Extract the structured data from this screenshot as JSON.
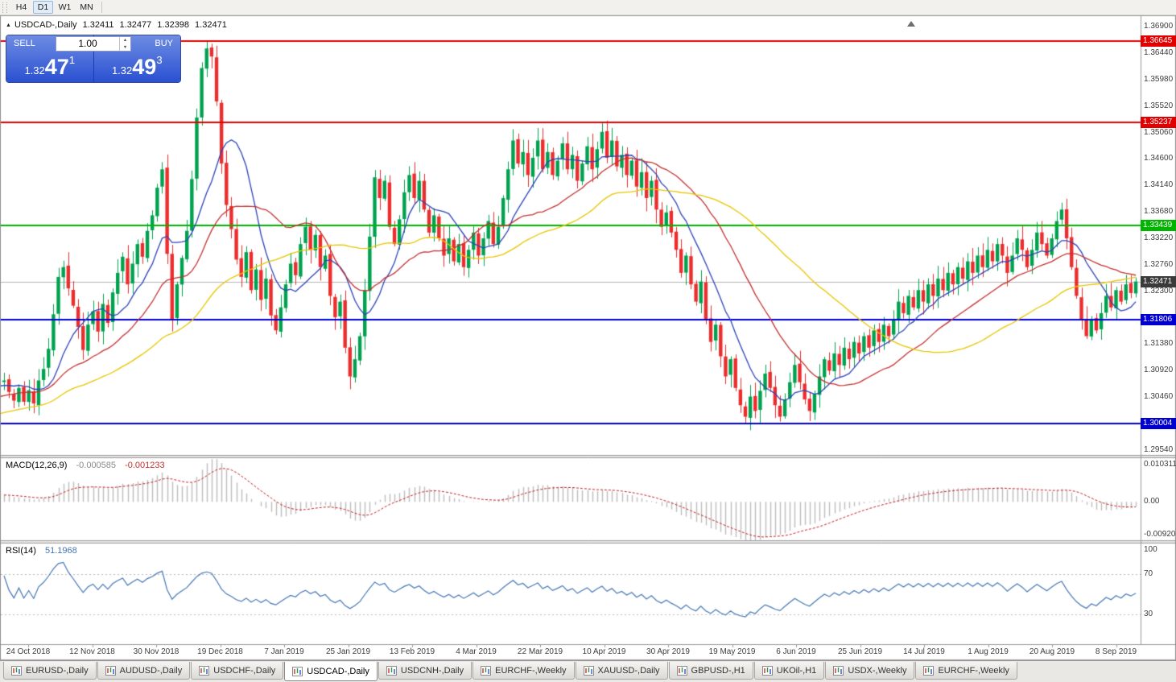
{
  "toolbar": {
    "timeframe_buttons": [
      "H4",
      "D1",
      "W1",
      "MN"
    ],
    "active_timeframe": "D1"
  },
  "chart_header": {
    "symbol_label": "USDCAD-,Daily",
    "open": "1.32411",
    "high": "1.32477",
    "low": "1.32398",
    "close": "1.32471"
  },
  "one_click_trading": {
    "sell_label": "SELL",
    "buy_label": "BUY",
    "volume": "1.00",
    "sell_price": {
      "base": "1.32",
      "pips": "47",
      "frac": "1"
    },
    "buy_price": {
      "base": "1.32",
      "pips": "49",
      "frac": "3"
    }
  },
  "indicators": {
    "macd": {
      "label": "MACD(12,26,9)",
      "value_main": "-0.000585",
      "value_signal": "-0.001233",
      "fast": 12,
      "slow": 26,
      "signal": 9,
      "axis_max": "0.010311",
      "axis_zero": "0.00",
      "axis_min": "-0.009203"
    },
    "rsi": {
      "label": "RSI(14)",
      "value": "51.1968",
      "period": 14,
      "axis_labels": [
        "100",
        "70",
        "30"
      ],
      "levels": [
        70,
        30
      ]
    }
  },
  "chart_data": {
    "type": "candlestick",
    "title": "USDCAD-,Daily",
    "symbol": "USDCAD",
    "timeframe": "Daily",
    "up_color": "#00a24f",
    "down_color": "#ec2d2d",
    "x_labels": [
      "24 Oct 2018",
      "12 Nov 2018",
      "30 Nov 2018",
      "19 Dec 2018",
      "7 Jan 2019",
      "25 Jan 2019",
      "13 Feb 2019",
      "4 Mar 2019",
      "22 Mar 2019",
      "10 Apr 2019",
      "30 Apr 2019",
      "19 May 2019",
      "6 Jun 2019",
      "25 Jun 2019",
      "14 Jul 2019",
      "1 Aug 2019",
      "20 Aug 2019",
      "8 Sep 2019"
    ],
    "closes": [
      1.3075,
      1.3055,
      1.304,
      1.3062,
      1.3038,
      1.3058,
      1.3035,
      1.3075,
      1.3095,
      1.313,
      1.319,
      1.3255,
      1.3272,
      1.3235,
      1.3205,
      1.3168,
      1.3128,
      1.3172,
      1.3195,
      1.316,
      1.3208,
      1.3175,
      1.3228,
      1.3262,
      1.329,
      1.3242,
      1.3278,
      1.3312,
      1.329,
      1.3335,
      1.3362,
      1.341,
      1.3442,
      1.3295,
      1.3182,
      1.3242,
      1.3288,
      1.3335,
      1.3425,
      1.3532,
      1.3618,
      1.3652,
      1.3638,
      1.356,
      1.3452,
      1.338,
      1.3338,
      1.3285,
      1.3255,
      1.3298,
      1.3232,
      1.3268,
      1.3215,
      1.3252,
      1.3188,
      1.3162,
      1.3202,
      1.3242,
      1.3278,
      1.3258,
      1.3312,
      1.3342,
      1.3302,
      1.3328,
      1.3272,
      1.3292,
      1.3222,
      1.3185,
      1.3212,
      1.3132,
      1.3082,
      1.3112,
      1.3152,
      1.3232,
      1.3325,
      1.3428,
      1.3392,
      1.3422,
      1.3342,
      1.3312,
      1.3355,
      1.3402,
      1.3432,
      1.3392,
      1.3422,
      1.3372,
      1.3332,
      1.3362,
      1.3322,
      1.3292,
      1.3322,
      1.3282,
      1.3312,
      1.3272,
      1.3302,
      1.3332,
      1.3292,
      1.3322,
      1.3352,
      1.3312,
      1.3342,
      1.3392,
      1.3442,
      1.3492,
      1.3452,
      1.3472,
      1.3432,
      1.3462,
      1.3492,
      1.3442,
      1.3472,
      1.3432,
      1.3457,
      1.3487,
      1.3442,
      1.3467,
      1.3422,
      1.3452,
      1.3482,
      1.3442,
      1.3477,
      1.3507,
      1.3462,
      1.3492,
      1.3447,
      1.3467,
      1.3432,
      1.3457,
      1.3412,
      1.3437,
      1.3392,
      1.3422,
      1.3372,
      1.3342,
      1.3367,
      1.3332,
      1.3302,
      1.3262,
      1.3292,
      1.3242,
      1.3212,
      1.3247,
      1.3182,
      1.3142,
      1.3172,
      1.3117,
      1.3082,
      1.3112,
      1.3062,
      1.3032,
      1.3012,
      1.3047,
      1.3022,
      1.3057,
      1.3087,
      1.3062,
      1.3032,
      1.3012,
      1.3042,
      1.3072,
      1.3102,
      1.3072,
      1.3042,
      1.3022,
      1.3052,
      1.3082,
      1.3112,
      1.3092,
      1.3122,
      1.3102,
      1.3132,
      1.3112,
      1.3142,
      1.3122,
      1.3152,
      1.3132,
      1.3162,
      1.3142,
      1.3172,
      1.3152,
      1.3182,
      1.3212,
      1.3192,
      1.3222,
      1.3202,
      1.3232,
      1.3212,
      1.3242,
      1.3222,
      1.3252,
      1.3232,
      1.3262,
      1.3242,
      1.3272,
      1.3252,
      1.3282,
      1.3262,
      1.3292,
      1.3272,
      1.3302,
      1.3282,
      1.3312,
      1.3292,
      1.3262,
      1.3292,
      1.3322,
      1.3302,
      1.3272,
      1.3302,
      1.3332,
      1.3312,
      1.3292,
      1.3322,
      1.3352,
      1.3372,
      1.3322,
      1.3272,
      1.3222,
      1.3182,
      1.3152,
      1.3182,
      1.3162,
      1.3192,
      1.3222,
      1.3202,
      1.3232,
      1.3212,
      1.3242,
      1.3227,
      1.3247
    ],
    "seed_history": {
      "bars": 60,
      "start": 1.2935
    },
    "pinned_extremes": {
      "41": {
        "high": 1.36645
      },
      "121": {
        "high": 1.35237
      },
      "150": {
        "low": 1.30004
      },
      "214": {
        "high": 1.3384
      }
    },
    "horizontal_lines": [
      {
        "price": 1.36645,
        "label": "1.36645",
        "color": "#e10000"
      },
      {
        "price": 1.35237,
        "label": "1.35237",
        "color": "#e10000"
      },
      {
        "price": 1.33439,
        "label": "1.33439",
        "color": "#00b400"
      },
      {
        "price": 1.31806,
        "label": "1.31806",
        "color": "#0000d2"
      },
      {
        "price": 1.30004,
        "label": "1.30004",
        "color": "#0000d2"
      }
    ],
    "current_price": {
      "value": 1.32471,
      "label": "1.32471",
      "tag_color": "#3a3a3a"
    },
    "y_axis": {
      "price_top": 1.37082,
      "price_bottom": 1.29456,
      "label_start": 1.369,
      "label_step": 0.0046,
      "label_count": 17
    },
    "macd_scale": {
      "max": 0.010311,
      "min": -0.009203
    },
    "moving_averages": [
      {
        "period": 10,
        "color": "#2d43b8"
      },
      {
        "period": 25,
        "color": "#c53030"
      },
      {
        "period": 50,
        "color": "#e8c600"
      }
    ]
  },
  "bottom_tabs": {
    "active_index": 3,
    "tabs": [
      {
        "label": "EURUSD-,Daily"
      },
      {
        "label": "AUDUSD-,Daily"
      },
      {
        "label": "USDCHF-,Daily"
      },
      {
        "label": "USDCAD-,Daily"
      },
      {
        "label": "USDCNH-,Daily"
      },
      {
        "label": "EURCHF-,Weekly"
      },
      {
        "label": "XAUUSD-,Daily"
      },
      {
        "label": "GBPUSD-,H1"
      },
      {
        "label": "UKOil-,H1"
      },
      {
        "label": "USDX-,Weekly"
      },
      {
        "label": "EURCHF-,Weekly"
      }
    ]
  }
}
